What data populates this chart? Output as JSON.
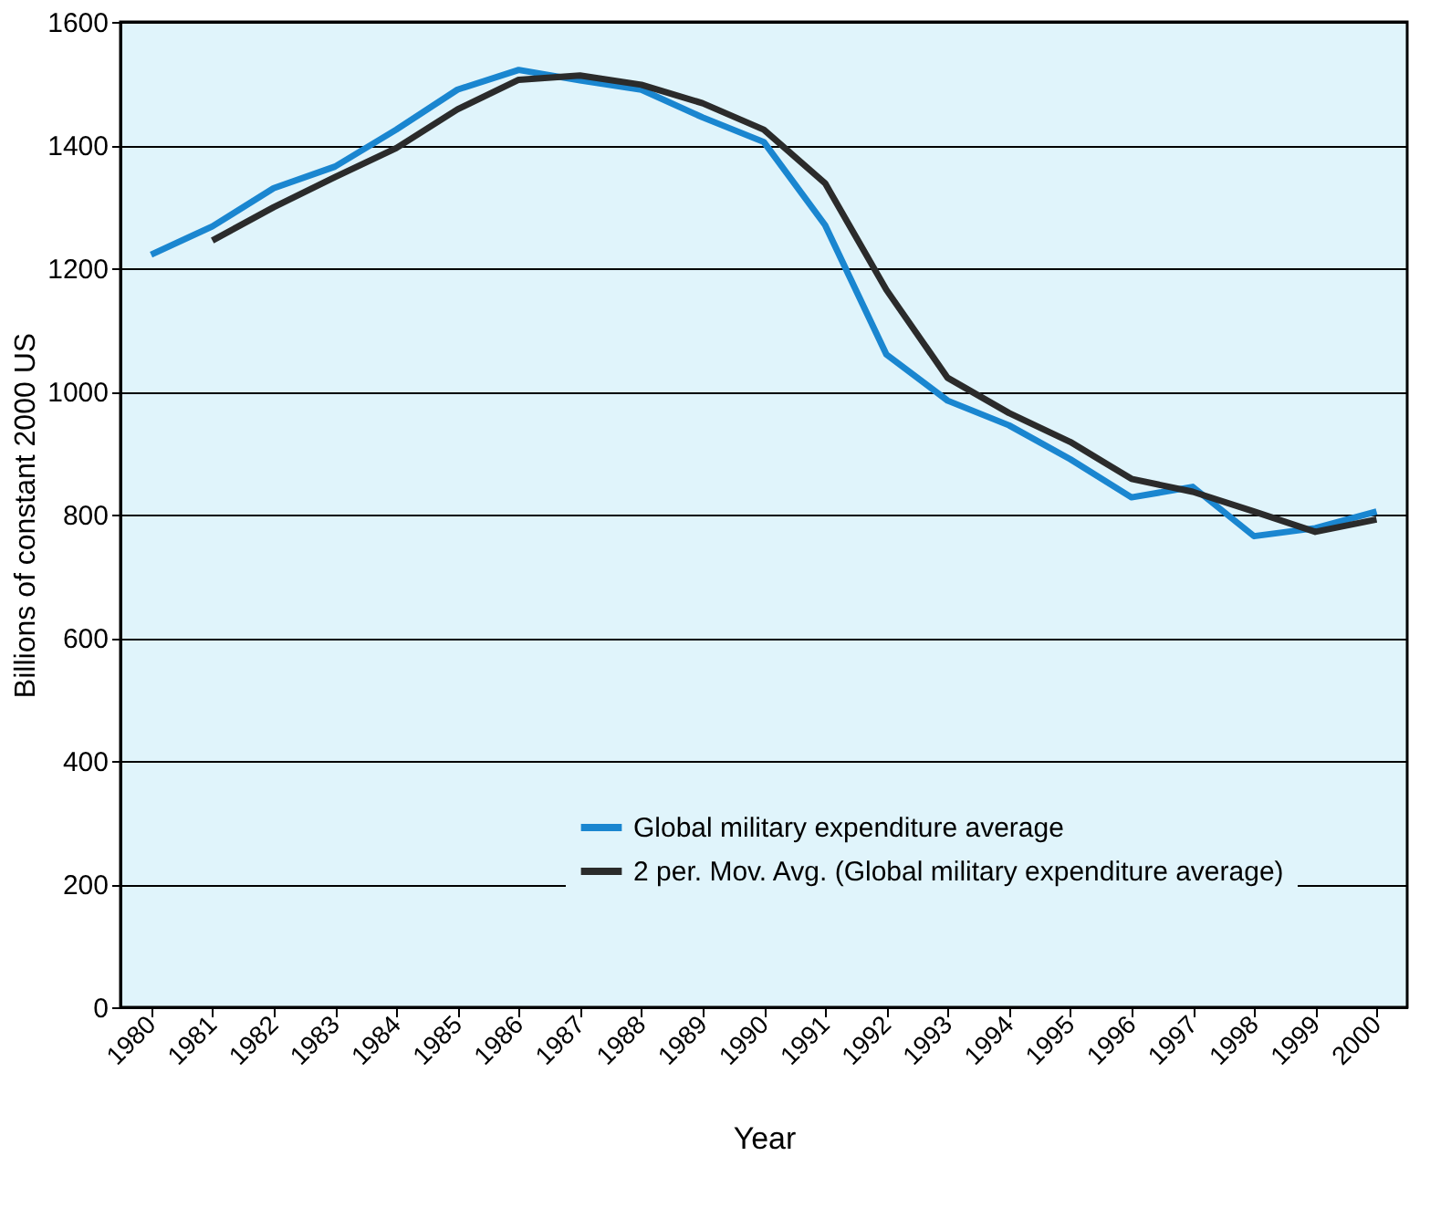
{
  "chart_data": {
    "type": "line",
    "xlabel": "Year",
    "ylabel": "Billions of constant 2000 US",
    "categories": [
      "1980",
      "1981",
      "1982",
      "1983",
      "1984",
      "1985",
      "1986",
      "1987",
      "1988",
      "1989",
      "1990",
      "1991",
      "1992",
      "1993",
      "1994",
      "1995",
      "1996",
      "1997",
      "1998",
      "1999",
      "2000"
    ],
    "series": [
      {
        "name": "Global military expenditure average",
        "color": "#1a86d0",
        "values": [
          1222,
          1268,
          1330,
          1365,
          1425,
          1490,
          1522,
          1505,
          1490,
          1445,
          1405,
          1270,
          1060,
          985,
          945,
          890,
          828,
          845,
          765,
          778,
          805
        ]
      },
      {
        "name": "2 per. Mov. Avg. (Global military expenditure average)",
        "color": "#2b2b2b",
        "values": [
          null,
          1245,
          1299,
          1348,
          1395,
          1458,
          1506,
          1513,
          1498,
          1468,
          1425,
          1338,
          1165,
          1022,
          965,
          918,
          858,
          837,
          805,
          772,
          792
        ]
      }
    ],
    "ylim": [
      0,
      1600
    ],
    "yticks": [
      0,
      200,
      400,
      600,
      800,
      1000,
      1200,
      1400,
      1600
    ],
    "grid": "y",
    "legend": "bottom right",
    "line_style": "solid",
    "marker": "none"
  }
}
